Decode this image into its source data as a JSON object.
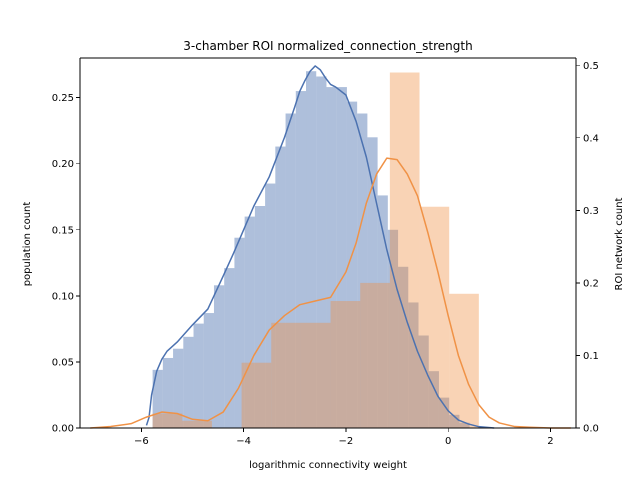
{
  "chart_data": {
    "type": "histogram-kde-dual-axis",
    "title": "3-chamber ROI normalized_connection_strength",
    "xlabel": "logarithmic connectivity weight",
    "ylabel_left": "population count",
    "ylabel_right": "ROI network count",
    "xlim": [
      -7.2,
      2.5
    ],
    "ylim_left": [
      0,
      0.28
    ],
    "ylim_right": [
      0,
      0.51
    ],
    "xticks": [
      -6,
      -4,
      -2,
      0,
      2
    ],
    "xtick_labels": [
      "−6",
      "−4",
      "−2",
      "0",
      "2"
    ],
    "yticks_left": [
      0.0,
      0.05,
      0.1,
      0.15,
      0.2,
      0.25
    ],
    "ytick_labels_left": [
      "0.00",
      "0.05",
      "0.10",
      "0.15",
      "0.20",
      "0.25"
    ],
    "yticks_right": [
      0.0,
      0.1,
      0.2,
      0.3,
      0.4,
      0.5
    ],
    "ytick_labels_right": [
      "0.0",
      "0.1",
      "0.2",
      "0.3",
      "0.4",
      "0.5"
    ],
    "grid": false,
    "series": [
      {
        "axis": "left",
        "color": "#4c72b0",
        "fill_alpha": 0.45,
        "hist_bins": [
          {
            "x0": -5.78,
            "x1": -5.58,
            "y": 0.044
          },
          {
            "x0": -5.58,
            "x1": -5.38,
            "y": 0.053
          },
          {
            "x0": -5.38,
            "x1": -5.18,
            "y": 0.06
          },
          {
            "x0": -5.18,
            "x1": -4.98,
            "y": 0.069
          },
          {
            "x0": -4.98,
            "x1": -4.78,
            "y": 0.079
          },
          {
            "x0": -4.78,
            "x1": -4.58,
            "y": 0.087
          },
          {
            "x0": -4.58,
            "x1": -4.38,
            "y": 0.108
          },
          {
            "x0": -4.38,
            "x1": -4.18,
            "y": 0.121
          },
          {
            "x0": -4.18,
            "x1": -3.98,
            "y": 0.144
          },
          {
            "x0": -3.98,
            "x1": -3.78,
            "y": 0.16
          },
          {
            "x0": -3.78,
            "x1": -3.58,
            "y": 0.168
          },
          {
            "x0": -3.58,
            "x1": -3.38,
            "y": 0.185
          },
          {
            "x0": -3.38,
            "x1": -3.18,
            "y": 0.213
          },
          {
            "x0": -3.18,
            "x1": -2.98,
            "y": 0.238
          },
          {
            "x0": -2.98,
            "x1": -2.78,
            "y": 0.255
          },
          {
            "x0": -2.78,
            "x1": -2.58,
            "y": 0.27
          },
          {
            "x0": -2.58,
            "x1": -2.38,
            "y": 0.266
          },
          {
            "x0": -2.38,
            "x1": -2.18,
            "y": 0.258
          },
          {
            "x0": -2.18,
            "x1": -1.98,
            "y": 0.258
          },
          {
            "x0": -1.98,
            "x1": -1.78,
            "y": 0.247
          },
          {
            "x0": -1.78,
            "x1": -1.58,
            "y": 0.238
          },
          {
            "x0": -1.58,
            "x1": -1.38,
            "y": 0.22
          },
          {
            "x0": -1.38,
            "x1": -1.18,
            "y": 0.176
          },
          {
            "x0": -1.18,
            "x1": -0.98,
            "y": 0.15
          },
          {
            "x0": -0.98,
            "x1": -0.78,
            "y": 0.122
          },
          {
            "x0": -0.78,
            "x1": -0.58,
            "y": 0.095
          },
          {
            "x0": -0.58,
            "x1": -0.38,
            "y": 0.07
          },
          {
            "x0": -0.38,
            "x1": -0.18,
            "y": 0.043
          },
          {
            "x0": -0.18,
            "x1": 0.02,
            "y": 0.023
          },
          {
            "x0": 0.02,
            "x1": 0.22,
            "y": 0.01
          },
          {
            "x0": 0.22,
            "x1": 0.42,
            "y": 0.004
          }
        ],
        "kde": {
          "x": [
            -5.9,
            -5.85,
            -5.8,
            -5.7,
            -5.6,
            -5.5,
            -5.3,
            -5.0,
            -4.7,
            -4.4,
            -4.2,
            -4.0,
            -3.8,
            -3.5,
            -3.2,
            -3.0,
            -2.9,
            -2.8,
            -2.7,
            -2.6,
            -2.5,
            -2.4,
            -2.3,
            -2.2,
            -2.0,
            -1.8,
            -1.6,
            -1.4,
            -1.2,
            -1.0,
            -0.8,
            -0.6,
            -0.4,
            -0.2,
            0.0,
            0.2,
            0.4,
            0.6,
            0.9
          ],
          "y": [
            0.002,
            0.008,
            0.025,
            0.043,
            0.052,
            0.058,
            0.065,
            0.078,
            0.09,
            0.115,
            0.132,
            0.15,
            0.168,
            0.19,
            0.22,
            0.243,
            0.255,
            0.263,
            0.27,
            0.274,
            0.271,
            0.265,
            0.26,
            0.258,
            0.252,
            0.232,
            0.205,
            0.17,
            0.135,
            0.105,
            0.08,
            0.058,
            0.04,
            0.024,
            0.013,
            0.006,
            0.003,
            0.001,
            0.0
          ]
        }
      },
      {
        "axis": "right",
        "color": "#f09246",
        "fill_alpha": 0.4,
        "hist_bins": [
          {
            "x0": -5.78,
            "x1": -5.2,
            "y": 0.02
          },
          {
            "x0": -5.2,
            "x1": -4.62,
            "y": 0.01
          },
          {
            "x0": -4.62,
            "x1": -4.04,
            "y": 0.0
          },
          {
            "x0": -4.04,
            "x1": -3.46,
            "y": 0.09
          },
          {
            "x0": -3.46,
            "x1": -2.88,
            "y": 0.145
          },
          {
            "x0": -2.88,
            "x1": -2.3,
            "y": 0.145
          },
          {
            "x0": -2.3,
            "x1": -1.72,
            "y": 0.175
          },
          {
            "x0": -1.72,
            "x1": -1.14,
            "y": 0.2
          },
          {
            "x0": -1.14,
            "x1": -0.56,
            "y": 0.49
          },
          {
            "x0": -0.56,
            "x1": 0.02,
            "y": 0.305
          },
          {
            "x0": 0.02,
            "x1": 0.6,
            "y": 0.185
          },
          {
            "x0": 0.6,
            "x1": 1.18,
            "y": 0.0
          }
        ],
        "kde": {
          "x": [
            -7.0,
            -6.6,
            -6.2,
            -5.9,
            -5.6,
            -5.3,
            -5.0,
            -4.7,
            -4.4,
            -4.1,
            -3.8,
            -3.5,
            -3.2,
            -2.9,
            -2.6,
            -2.3,
            -2.0,
            -1.8,
            -1.6,
            -1.4,
            -1.2,
            -1.0,
            -0.8,
            -0.6,
            -0.4,
            -0.2,
            0.0,
            0.2,
            0.4,
            0.6,
            0.8,
            1.0,
            1.3,
            1.6,
            2.0,
            2.4
          ],
          "y": [
            0.0,
            0.002,
            0.006,
            0.015,
            0.022,
            0.02,
            0.012,
            0.01,
            0.022,
            0.055,
            0.1,
            0.135,
            0.155,
            0.17,
            0.175,
            0.18,
            0.215,
            0.255,
            0.31,
            0.35,
            0.372,
            0.37,
            0.35,
            0.32,
            0.27,
            0.215,
            0.155,
            0.1,
            0.06,
            0.032,
            0.015,
            0.007,
            0.002,
            0.001,
            0.0,
            0.0
          ]
        }
      }
    ]
  }
}
